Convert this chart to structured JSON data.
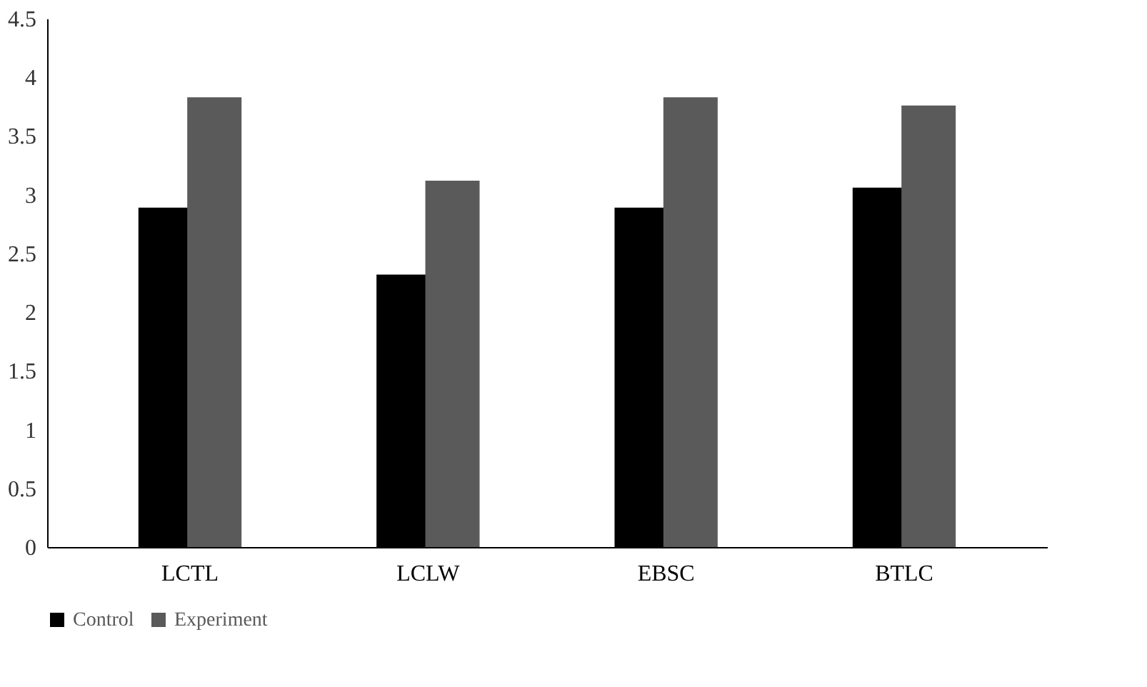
{
  "chart_data": {
    "type": "bar",
    "categories": [
      "LCTL",
      "LCLW",
      "EBSC",
      "BTLC"
    ],
    "series": [
      {
        "name": "Control",
        "color": "#000000",
        "values": [
          2.89,
          2.32,
          2.89,
          3.06
        ]
      },
      {
        "name": "Experiment",
        "color": "#5a5a5a",
        "values": [
          3.83,
          3.12,
          3.83,
          3.76
        ]
      }
    ],
    "ylim": [
      0,
      4.5
    ],
    "yticks": [
      0,
      0.5,
      1,
      1.5,
      2,
      2.5,
      3,
      3.5,
      4,
      4.5
    ],
    "grid": false,
    "legend": "bottom"
  }
}
